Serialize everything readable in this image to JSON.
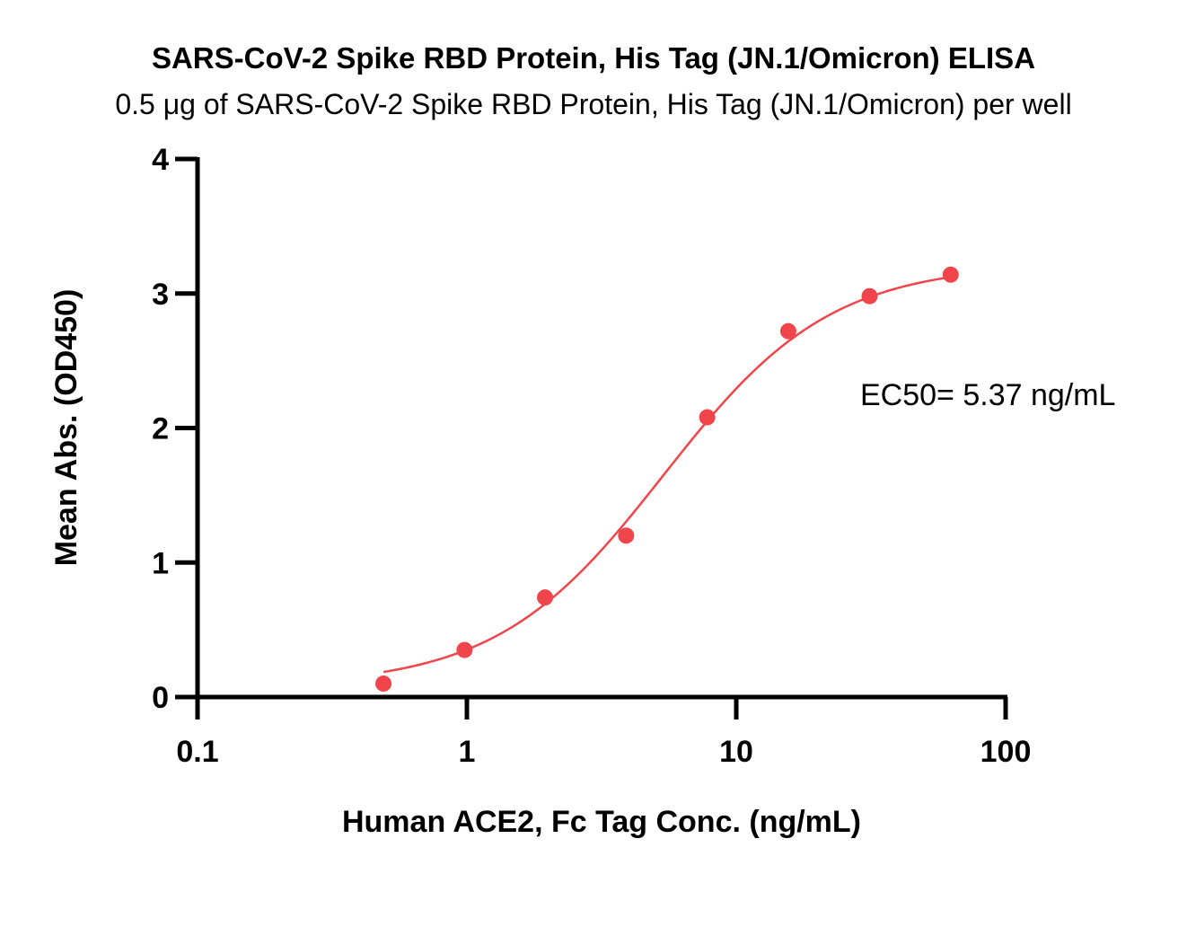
{
  "chart_data": {
    "type": "scatter",
    "title": "SARS-CoV-2 Spike RBD Protein, His Tag (JN.1/Omicron) ELISA",
    "subtitle": "0.5 μg of SARS-CoV-2 Spike RBD Protein, His Tag (JN.1/Omicron) per well",
    "xlabel": "Human ACE2, Fc Tag Conc. (ng/mL)",
    "ylabel": "Mean Abs. (OD450)",
    "x_scale": "log",
    "xlim": [
      0.1,
      100
    ],
    "ylim": [
      0,
      4
    ],
    "x_ticks": [
      "0.1",
      "1",
      "10",
      "100"
    ],
    "y_ticks": [
      "0",
      "1",
      "2",
      "3",
      "4"
    ],
    "grid": false,
    "color": "#f0454a",
    "points": [
      {
        "x": 0.49,
        "y": 0.1
      },
      {
        "x": 0.98,
        "y": 0.35
      },
      {
        "x": 1.95,
        "y": 0.74
      },
      {
        "x": 3.9,
        "y": 1.2
      },
      {
        "x": 7.8,
        "y": 2.08
      },
      {
        "x": 15.6,
        "y": 2.72
      },
      {
        "x": 31.25,
        "y": 2.98
      },
      {
        "x": 62.5,
        "y": 3.14
      }
    ],
    "fit_curve": {
      "type": "4PL",
      "bottom": 0.08,
      "top": 3.22,
      "ec50": 5.37,
      "hill": 1.4
    },
    "annotation": "EC50= 5.37 ng/mL"
  }
}
